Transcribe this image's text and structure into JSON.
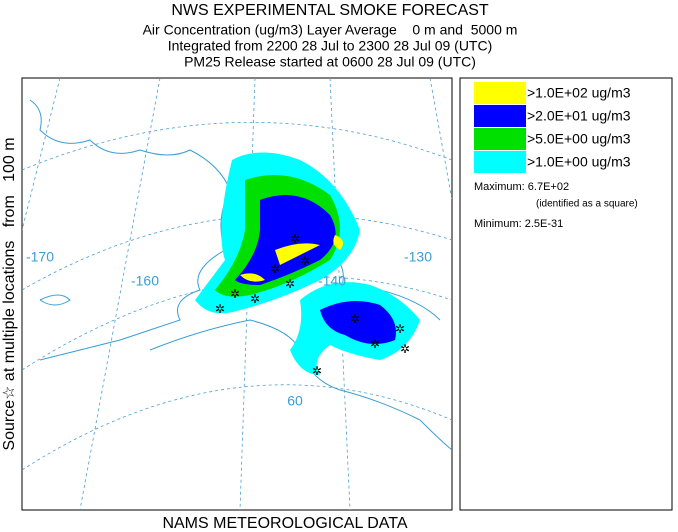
{
  "header": {
    "title": "NWS EXPERIMENTAL SMOKE FORECAST",
    "lines": [
      "Air Concentration (ug/m3) Layer Average    0 m and  5000 m",
      "Integrated from 2200 28 Jul to 2300 28 Jul 09 (UTC)",
      "PM25 Release started at 0600 28 Jul 09 (UTC)"
    ]
  },
  "side_label": "Source☆ at multiple locations   from   100 m",
  "footer": "NAMS METEOROLOGICAL DATA",
  "map": {
    "grid_labels": [
      "-170",
      "-160",
      "-140",
      "-130",
      "60"
    ]
  },
  "legend": {
    "items": [
      {
        "label": ">1.0E+02 ug/m3",
        "color": "#ffff00"
      },
      {
        "label": ">2.0E+01 ug/m3",
        "color": "#0000ff"
      },
      {
        "label": ">5.0E+00 ug/m3",
        "color": "#00e000"
      },
      {
        "label": ">1.0E+00 ug/m3",
        "color": "#00ffff"
      }
    ],
    "maximum": "Maximum: 6.7E+02",
    "max_note": "(identified as a square)",
    "minimum": "Minimum: 2.5E-31"
  }
}
